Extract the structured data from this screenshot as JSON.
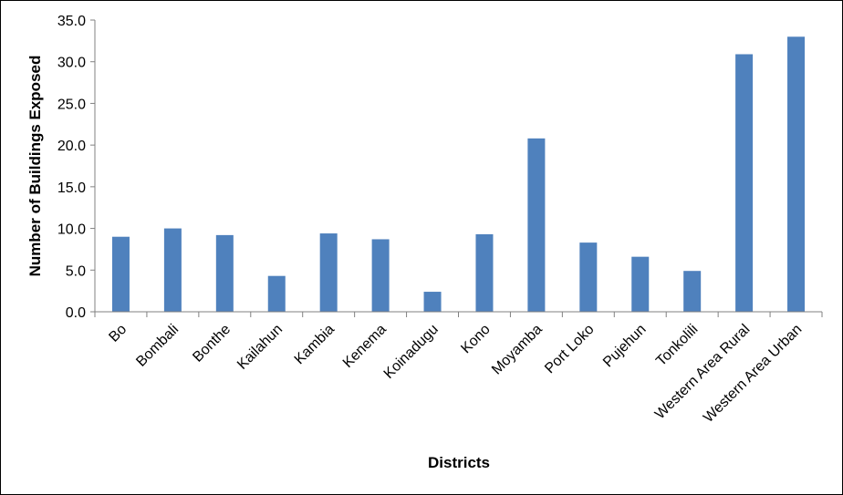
{
  "chart_data": {
    "type": "bar",
    "title": "",
    "xlabel": "Districts",
    "ylabel": "Number of Buildings Exposed",
    "categories": [
      "Bo",
      "Bombali",
      "Bonthe",
      "Kailahun",
      "Kambia",
      "Kenema",
      "Koinadugu",
      "Kono",
      "Moyamba",
      "Port Loko",
      "Pujehun",
      "Tonkolili",
      "Western Area Rural",
      "Western Area Urban"
    ],
    "values": [
      9.0,
      10.0,
      9.2,
      4.3,
      9.4,
      8.7,
      2.4,
      9.3,
      20.8,
      8.3,
      6.6,
      4.9,
      30.9,
      33.0
    ],
    "ylim": [
      0,
      35
    ],
    "yticks": [
      "0.0",
      "5.0",
      "10.0",
      "15.0",
      "20.0",
      "25.0",
      "30.0",
      "35.0"
    ],
    "grid": false,
    "legend": "none",
    "bar_color": "#4F81BD",
    "axis_color": "#808080"
  }
}
